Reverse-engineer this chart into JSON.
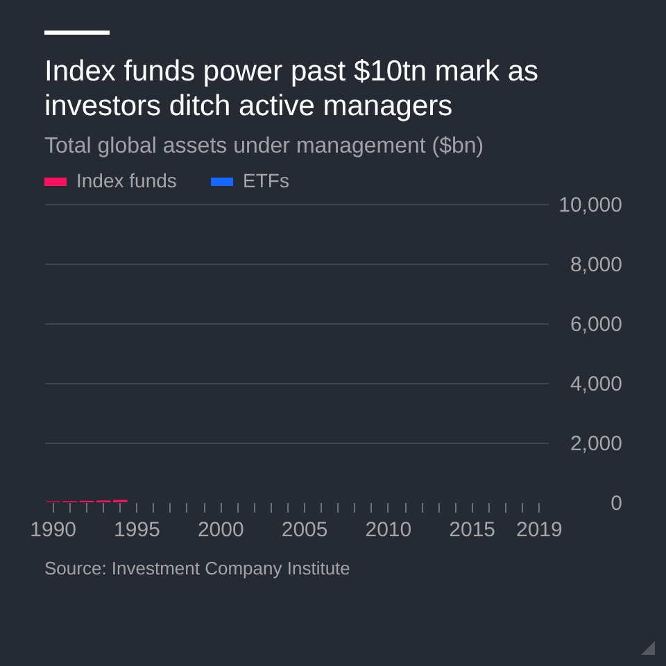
{
  "chart_data": {
    "type": "bar",
    "title": "Index funds power past $10tn mark as investors ditch active managers",
    "subtitle": "Total global assets under management ($bn)",
    "categories": [
      "1990",
      null,
      null,
      null,
      null,
      "1995",
      null,
      null,
      null,
      null,
      "2000",
      null,
      null,
      null,
      null,
      "2005",
      null,
      null,
      null,
      null,
      "2010",
      null,
      null,
      null,
      null,
      "2015",
      null,
      null,
      null,
      "2019"
    ],
    "series": [
      {
        "name": "Index funds",
        "color": "#f5115d",
        "values": [
          30,
          40,
          50,
          60,
          80,
          null,
          null,
          null,
          null,
          null,
          null,
          null,
          null,
          null,
          null,
          null,
          null,
          null,
          null,
          null,
          null,
          null,
          null,
          null,
          null,
          null,
          null,
          null,
          null,
          null
        ]
      },
      {
        "name": "ETFs",
        "color": "#1268ff",
        "values": [
          null,
          null,
          null,
          null,
          null,
          null,
          null,
          null,
          null,
          null,
          null,
          null,
          null,
          null,
          null,
          null,
          null,
          null,
          null,
          null,
          null,
          null,
          null,
          null,
          null,
          null,
          null,
          null,
          null,
          null
        ]
      }
    ],
    "ylim": [
      0,
      10000
    ],
    "yticks": [
      0,
      {
        "value": 2000,
        "label": "2,000"
      },
      {
        "value": 4000,
        "label": "4,000"
      },
      {
        "value": 6000,
        "label": "6,000"
      },
      {
        "value": 8000,
        "label": "8,000"
      },
      {
        "value": 10000,
        "label": "10,000"
      }
    ],
    "grid": "y",
    "legend": "top left",
    "annotations": [
      "Source: Investment Company Institute"
    ]
  }
}
